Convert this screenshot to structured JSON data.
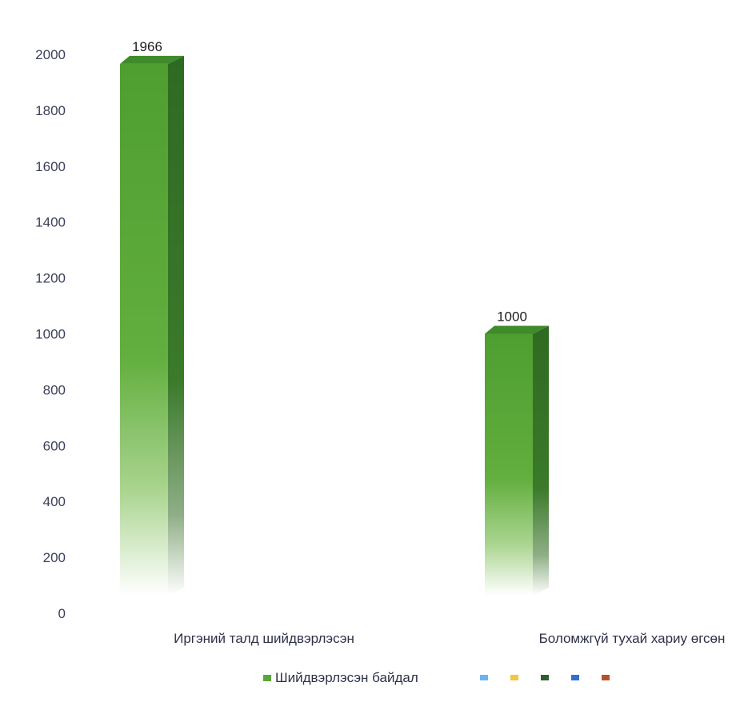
{
  "chart_data": {
    "type": "bar",
    "style": "3d-column",
    "categories": [
      "Иргэний талд шийдвэрлэсэн",
      "Боломжгүй тухай хариу өгсөн"
    ],
    "series": [
      {
        "name": "Шийдвэрлэсэн байдал",
        "values": [
          1966,
          1000
        ],
        "color": "#5aa63a"
      }
    ],
    "data_labels": [
      "1966",
      "1000"
    ],
    "yticks": [
      0,
      200,
      400,
      600,
      800,
      1000,
      1200,
      1400,
      1600,
      1800,
      2000
    ],
    "ylim": [
      0,
      2000
    ],
    "grid": false,
    "legend_position": "bottom",
    "legend_extra_swatches": [
      "#64b5f6",
      "#f5c542",
      "#2f5d2f",
      "#2f6fd6",
      "#b5522e"
    ]
  }
}
